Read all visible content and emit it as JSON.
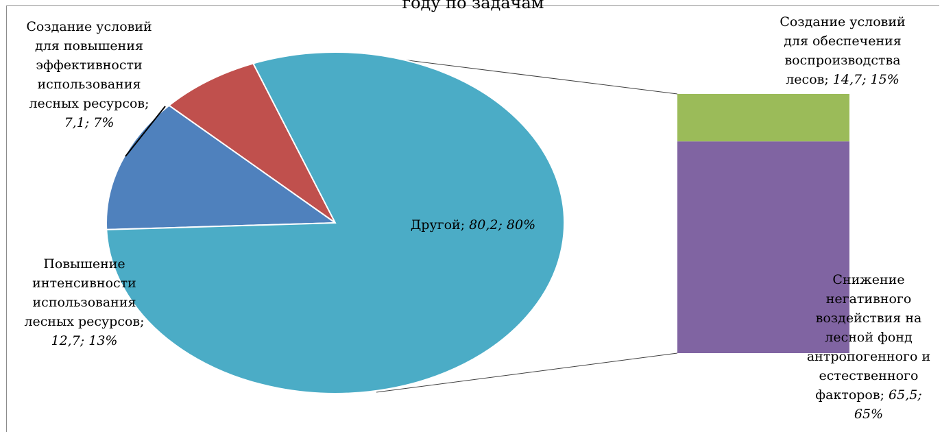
{
  "chart_data": {
    "type": "bar-of-pie",
    "title": "году по задачам",
    "pie": [
      {
        "label_lines": [
          "Создание условий",
          "для повышения",
          "эффективности",
          "использования",
          "лесных ресурсов;"
        ],
        "value": 7.1,
        "value_text": "7,1",
        "percent": 7,
        "percent_text": "7%",
        "color": "#c0504d"
      },
      {
        "label_lines": [
          "Повышение",
          "интенсивности",
          "использования",
          "лесных ресурсов;"
        ],
        "value": 12.7,
        "value_text": "12,7",
        "percent": 13,
        "percent_text": "13%",
        "color": "#4f81bd"
      },
      {
        "label_lines": [
          "Другой;"
        ],
        "value": 80.2,
        "value_text": "80,2",
        "percent": 80,
        "percent_text": "80%",
        "color": "#4bacc6"
      }
    ],
    "bar": [
      {
        "label_lines": [
          "Создание условий",
          "для обеспечения",
          "воспроизводства",
          "лесов;"
        ],
        "value": 14.7,
        "value_text": "14,7",
        "percent": 15,
        "percent_text": "15%",
        "color": "#9bbb59"
      },
      {
        "label_lines": [
          "Снижение",
          "негативного",
          "воздействия на",
          "лесной фонд",
          "антропогенного и",
          "естественного",
          "факторов;"
        ],
        "value": 65.5,
        "value_text": "65,5",
        "percent": 65,
        "percent_text": "65%",
        "color": "#8064a2"
      }
    ]
  }
}
